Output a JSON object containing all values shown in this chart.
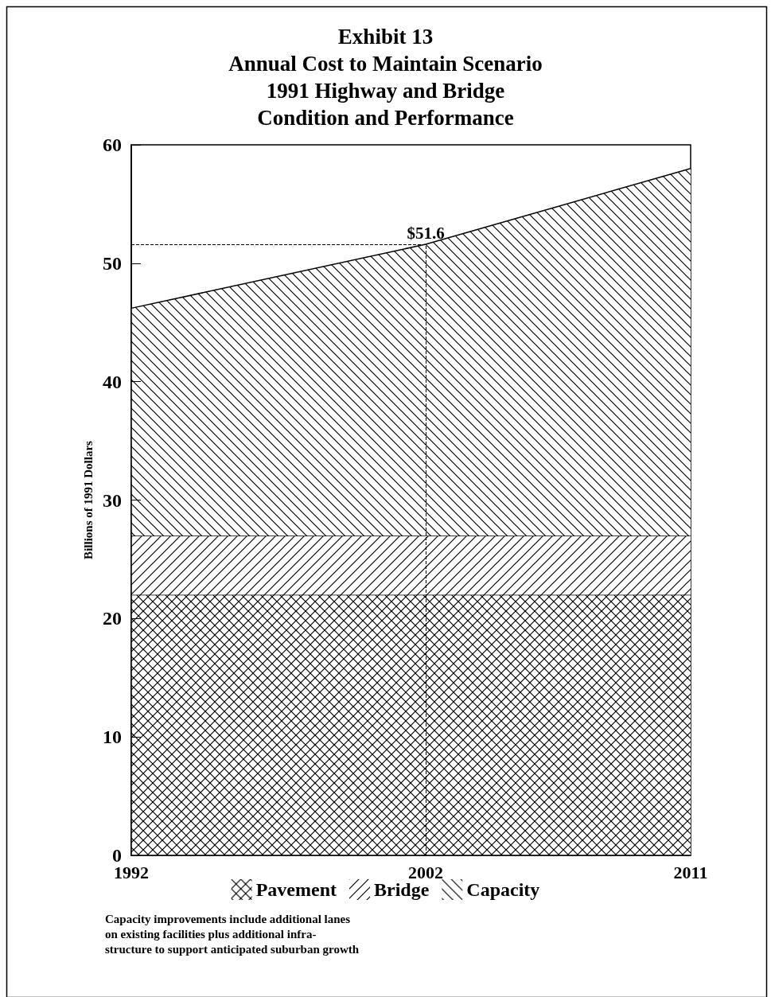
{
  "chart_data": {
    "type": "area",
    "title": "Exhibit 13\nAnnual Cost to Maintain Scenario\n1991 Highway and Bridge\nCondition and Performance",
    "ylabel": "Billions of 1991 Dollars",
    "x": [
      1992,
      2002,
      2011
    ],
    "series": [
      {
        "name": "Pavement",
        "color": "#000000",
        "values": [
          22,
          22,
          22
        ]
      },
      {
        "name": "Bridge",
        "color": "#000000",
        "values": [
          5,
          5,
          5
        ]
      },
      {
        "name": "Capacity",
        "color": "#000000",
        "values": [
          19.2,
          24.6,
          31.0
        ]
      }
    ],
    "stacked": true,
    "xlim": [
      1992,
      2011
    ],
    "xticks": [
      1992,
      2002,
      2011
    ],
    "ylim": [
      0,
      60
    ],
    "yticks": [
      0,
      10,
      20,
      30,
      40,
      50,
      60
    ],
    "ref_lines": [
      {
        "axis": "y",
        "value": 51.6,
        "label": "$51.6",
        "line_style": "dashed"
      },
      {
        "axis": "x",
        "value": 2002,
        "line_style": "dashed"
      }
    ],
    "grid": false,
    "legend": "bottom",
    "annotations": [
      "Capacity improvements include additional lanes\non existing facilities plus additional infra-\nstructure to support anticipated suburban growth"
    ]
  }
}
